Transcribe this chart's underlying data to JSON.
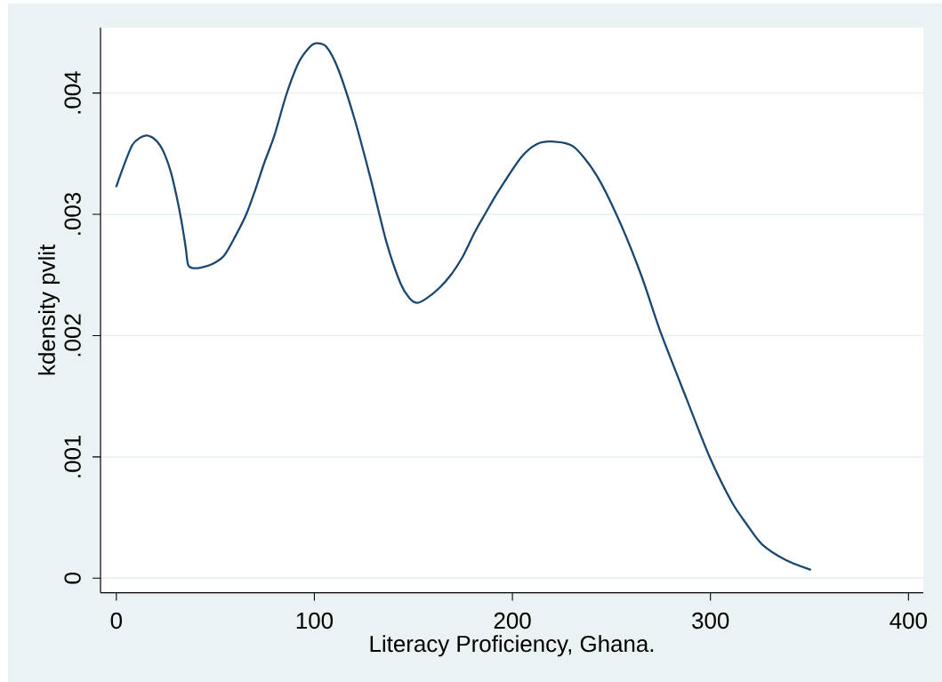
{
  "chart_data": {
    "type": "line",
    "xlabel": "Literacy Proficiency, Ghana.",
    "ylabel": "kdensity pvlit",
    "x": [
      0,
      3.5,
      8,
      11.8,
      15.5,
      20,
      23.7,
      27.5,
      30.4,
      32.7,
      34.9,
      36.1,
      37.9,
      42.4,
      48.4,
      54.4,
      60.1,
      65.6,
      70.1,
      74.6,
      79.8,
      85.9,
      92,
      97.1,
      100.8,
      106.1,
      112.2,
      120.2,
      128.3,
      136.4,
      143.5,
      148,
      152.1,
      156.9,
      162.9,
      168.9,
      174.9,
      180.9,
      186.1,
      192.9,
      204.4,
      212.4,
      220.1,
      230.7,
      242.2,
      253.6,
      265,
      275,
      287.9,
      299.3,
      310.7,
      318.5,
      326,
      338,
      350.4
    ],
    "series": [
      {
        "color": "#1a476f",
        "values": [
          0.00323,
          0.00339,
          0.00357,
          0.00363,
          0.00365,
          0.00361,
          0.00352,
          0.00335,
          0.00315,
          0.00296,
          0.00274,
          0.00259,
          0.00256,
          0.00256,
          0.00259,
          0.00266,
          0.00282,
          0.003,
          0.0032,
          0.00342,
          0.00365,
          0.00399,
          0.00425,
          0.00437,
          0.00441,
          0.00438,
          0.00419,
          0.00379,
          0.0033,
          0.00277,
          0.00243,
          0.00231,
          0.00227,
          0.00231,
          0.00239,
          0.0025,
          0.00265,
          0.00285,
          0.003,
          0.00319,
          0.00347,
          0.00358,
          0.0036,
          0.00356,
          0.00333,
          0.00296,
          0.0025,
          0.00202,
          0.00148,
          0.00101,
          0.00063,
          0.00044,
          0.00028,
          0.00015,
          7e-05
        ]
      }
    ],
    "xlim": [
      -8,
      407.5
    ],
    "ylim": [
      -0.00012,
      0.00454
    ],
    "xticks": [
      0,
      100,
      200,
      300,
      400
    ],
    "yticks": [
      0,
      {
        "value": 0.001,
        "label": ".001"
      },
      {
        "value": 0.002,
        "label": ".002"
      },
      {
        "value": 0.003,
        "label": ".003"
      },
      {
        "value": 0.004,
        "label": ".004"
      }
    ],
    "grid": "y"
  }
}
